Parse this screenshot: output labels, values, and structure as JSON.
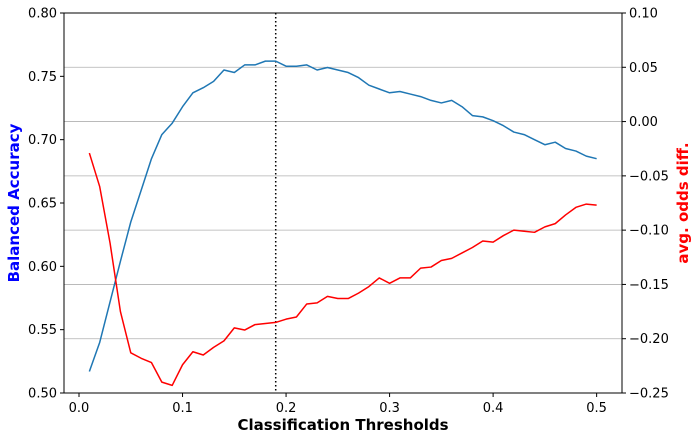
{
  "chart_data": {
    "type": "line",
    "xlabel": "Classification Thresholds",
    "ylabel_left": "Balanced Accuracy",
    "ylabel_right": "avg. odds diff.",
    "xlim": [
      -0.0145,
      0.5245
    ],
    "ylim_left": [
      0.5,
      0.8
    ],
    "ylim_right": [
      -0.25,
      0.1
    ],
    "xticks": [
      0.0,
      0.1,
      0.2,
      0.3,
      0.4,
      0.5
    ],
    "xtick_labels": [
      "0.0",
      "0.1",
      "0.2",
      "0.3",
      "0.4",
      "0.5"
    ],
    "yticks_left": [
      0.5,
      0.55,
      0.6,
      0.65,
      0.7,
      0.75,
      0.8
    ],
    "ytick_labels_left": [
      "0.50",
      "0.55",
      "0.60",
      "0.65",
      "0.70",
      "0.75",
      "0.80"
    ],
    "yticks_right": [
      -0.25,
      -0.2,
      -0.15,
      -0.1,
      -0.05,
      0.0,
      0.05,
      0.1
    ],
    "ytick_labels_right": [
      "−0.25",
      "−0.20",
      "−0.15",
      "−0.10",
      "−0.05",
      "0.00",
      "0.05",
      "0.10"
    ],
    "grid": "horizontal lines at right-axis ticks",
    "vline_x": 0.19,
    "label_colors": {
      "left": "#0000ff",
      "right": "#ff0000"
    },
    "x": [
      0.01,
      0.02,
      0.03,
      0.04,
      0.05,
      0.06,
      0.07,
      0.08,
      0.09,
      0.1,
      0.11,
      0.12,
      0.13,
      0.14,
      0.15,
      0.16,
      0.17,
      0.18,
      0.19,
      0.2,
      0.21,
      0.22,
      0.23,
      0.24,
      0.25,
      0.26,
      0.27,
      0.28,
      0.29,
      0.3,
      0.31,
      0.32,
      0.33,
      0.34,
      0.35,
      0.36,
      0.37,
      0.38,
      0.39,
      0.4,
      0.41,
      0.42,
      0.43,
      0.44,
      0.45,
      0.46,
      0.47,
      0.48,
      0.49,
      0.5
    ],
    "series": [
      {
        "axis": "left",
        "color": "#1f77b4",
        "values": [
          0.517,
          0.54,
          0.572,
          0.604,
          0.635,
          0.66,
          0.685,
          0.704,
          0.713,
          0.726,
          0.737,
          0.741,
          0.746,
          0.755,
          0.753,
          0.759,
          0.759,
          0.762,
          0.762,
          0.758,
          0.758,
          0.759,
          0.755,
          0.757,
          0.755,
          0.753,
          0.749,
          0.743,
          0.74,
          0.737,
          0.738,
          0.736,
          0.734,
          0.731,
          0.729,
          0.731,
          0.726,
          0.719,
          0.718,
          0.715,
          0.711,
          0.706,
          0.704,
          0.7,
          0.696,
          0.698,
          0.693,
          0.691,
          0.687,
          0.685
        ]
      },
      {
        "axis": "right",
        "color": "#ff0000",
        "values": [
          -0.029,
          -0.06,
          -0.112,
          -0.175,
          -0.213,
          -0.218,
          -0.222,
          -0.24,
          -0.243,
          -0.224,
          -0.212,
          -0.215,
          -0.208,
          -0.202,
          -0.19,
          -0.192,
          -0.187,
          -0.186,
          -0.185,
          -0.182,
          -0.18,
          -0.168,
          -0.167,
          -0.161,
          -0.163,
          -0.163,
          -0.158,
          -0.152,
          -0.144,
          -0.149,
          -0.144,
          -0.144,
          -0.135,
          -0.134,
          -0.128,
          -0.126,
          -0.121,
          -0.116,
          -0.11,
          -0.111,
          -0.105,
          -0.1,
          -0.101,
          -0.102,
          -0.097,
          -0.094,
          -0.086,
          -0.079,
          -0.076,
          -0.077
        ]
      }
    ]
  }
}
